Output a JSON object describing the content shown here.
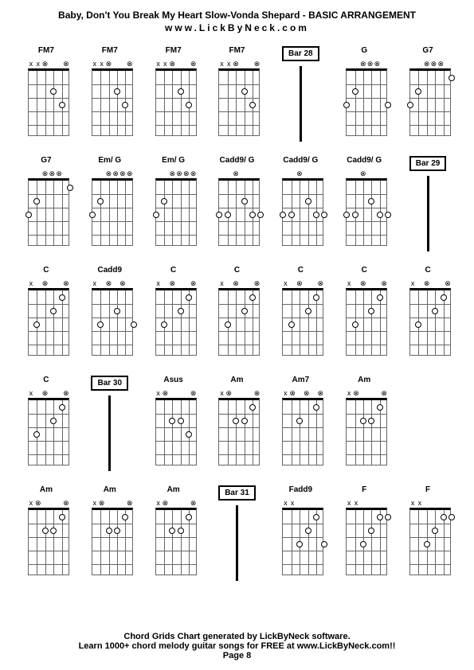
{
  "header": {
    "title": "Baby, Don't You Break My Heart Slow-Vonda Shepard - BASIC ARRANGEMENT",
    "subtitle": "www.LickByNeck.com"
  },
  "footer": {
    "line1": "Chord Grids Chart generated by LickByNeck software.",
    "line2": "Learn 1000+ chord melody guitar songs for FREE at www.LickByNeck.com!!",
    "line3": "Page 8"
  },
  "layout": {
    "cols": 7,
    "rows": 5,
    "frets": 5,
    "strings": 6,
    "fretboard_width": 52,
    "fretboard_height": 85,
    "colors": {
      "bg": "#ffffff",
      "text": "#000000",
      "grid_line": "#666666",
      "nut": "#000000"
    }
  },
  "cells": [
    {
      "type": "chord",
      "label": "FM7",
      "markers": [
        "x",
        "x",
        "⊗",
        "",
        "",
        "⊗"
      ],
      "dots": [
        {
          "s": 3,
          "f": 2,
          "fill": 0
        },
        {
          "s": 4,
          "f": 3,
          "fill": 0
        }
      ]
    },
    {
      "type": "chord",
      "label": "FM7",
      "markers": [
        "x",
        "x",
        "⊗",
        "",
        "",
        "⊗"
      ],
      "dots": [
        {
          "s": 3,
          "f": 2,
          "fill": 0
        },
        {
          "s": 4,
          "f": 3,
          "fill": 0
        }
      ]
    },
    {
      "type": "chord",
      "label": "FM7",
      "markers": [
        "x",
        "x",
        "⊗",
        "",
        "",
        "⊗"
      ],
      "dots": [
        {
          "s": 3,
          "f": 2,
          "fill": 0
        },
        {
          "s": 4,
          "f": 3,
          "fill": 0
        }
      ]
    },
    {
      "type": "chord",
      "label": "FM7",
      "markers": [
        "x",
        "x",
        "⊗",
        "",
        "",
        "⊗"
      ],
      "dots": [
        {
          "s": 3,
          "f": 2,
          "fill": 0
        },
        {
          "s": 4,
          "f": 3,
          "fill": 0
        }
      ]
    },
    {
      "type": "bar",
      "label": "Bar 28"
    },
    {
      "type": "chord",
      "label": "G",
      "markers": [
        "",
        "",
        "⊗",
        "⊗",
        "⊗",
        ""
      ],
      "dots": [
        {
          "s": 0,
          "f": 3,
          "fill": 0
        },
        {
          "s": 1,
          "f": 2,
          "fill": 0
        },
        {
          "s": 5,
          "f": 3,
          "fill": 0
        }
      ]
    },
    {
      "type": "chord",
      "label": "G7",
      "markers": [
        "",
        "",
        "⊗",
        "⊗",
        "⊗",
        ""
      ],
      "dots": [
        {
          "s": 0,
          "f": 3,
          "fill": 0
        },
        {
          "s": 1,
          "f": 2,
          "fill": 0
        },
        {
          "s": 5,
          "f": 1,
          "fill": 0
        }
      ]
    },
    {
      "type": "chord",
      "label": "G7",
      "markers": [
        "",
        "",
        "⊗",
        "⊗",
        "⊗",
        ""
      ],
      "dots": [
        {
          "s": 0,
          "f": 3,
          "fill": 0
        },
        {
          "s": 1,
          "f": 2,
          "fill": 0
        },
        {
          "s": 5,
          "f": 1,
          "fill": 0
        }
      ]
    },
    {
      "type": "chord",
      "label": "Em/ G",
      "markers": [
        "",
        "",
        "⊗",
        "⊗",
        "⊗",
        "⊗"
      ],
      "dots": [
        {
          "s": 0,
          "f": 3,
          "fill": 0
        },
        {
          "s": 1,
          "f": 2,
          "fill": 0
        }
      ]
    },
    {
      "type": "chord",
      "label": "Em/ G",
      "markers": [
        "",
        "",
        "⊗",
        "⊗",
        "⊗",
        "⊗"
      ],
      "dots": [
        {
          "s": 0,
          "f": 3,
          "fill": 0
        },
        {
          "s": 1,
          "f": 2,
          "fill": 0
        }
      ]
    },
    {
      "type": "chord",
      "label": "Cadd9/ G",
      "markers": [
        "",
        "",
        "⊗",
        "",
        "",
        ""
      ],
      "dots": [
        {
          "s": 0,
          "f": 3,
          "fill": 0
        },
        {
          "s": 1,
          "f": 3,
          "fill": 0
        },
        {
          "s": 3,
          "f": 2,
          "fill": 0
        },
        {
          "s": 4,
          "f": 3,
          "fill": 0
        },
        {
          "s": 5,
          "f": 3,
          "fill": 0
        }
      ]
    },
    {
      "type": "chord",
      "label": "Cadd9/ G",
      "markers": [
        "",
        "",
        "⊗",
        "",
        "",
        ""
      ],
      "dots": [
        {
          "s": 0,
          "f": 3,
          "fill": 0
        },
        {
          "s": 1,
          "f": 3,
          "fill": 0
        },
        {
          "s": 3,
          "f": 2,
          "fill": 0
        },
        {
          "s": 4,
          "f": 3,
          "fill": 0
        },
        {
          "s": 5,
          "f": 3,
          "fill": 0
        }
      ]
    },
    {
      "type": "chord",
      "label": "Cadd9/ G",
      "markers": [
        "",
        "",
        "⊗",
        "",
        "",
        ""
      ],
      "dots": [
        {
          "s": 0,
          "f": 3,
          "fill": 0
        },
        {
          "s": 1,
          "f": 3,
          "fill": 0
        },
        {
          "s": 3,
          "f": 2,
          "fill": 0
        },
        {
          "s": 4,
          "f": 3,
          "fill": 0
        },
        {
          "s": 5,
          "f": 3,
          "fill": 0
        }
      ]
    },
    {
      "type": "bar",
      "label": "Bar 29"
    },
    {
      "type": "chord",
      "label": "C",
      "markers": [
        "x",
        "",
        "⊗",
        "",
        "",
        "⊗"
      ],
      "dots": [
        {
          "s": 1,
          "f": 3,
          "fill": 0
        },
        {
          "s": 3,
          "f": 2,
          "fill": 0
        },
        {
          "s": 4,
          "f": 1,
          "fill": 0
        }
      ]
    },
    {
      "type": "chord",
      "label": "Cadd9",
      "markers": [
        "x",
        "",
        "⊗",
        "",
        "⊗",
        ""
      ],
      "dots": [
        {
          "s": 1,
          "f": 3,
          "fill": 0
        },
        {
          "s": 3,
          "f": 2,
          "fill": 0
        },
        {
          "s": 5,
          "f": 3,
          "fill": 0
        }
      ]
    },
    {
      "type": "chord",
      "label": "C",
      "markers": [
        "x",
        "",
        "⊗",
        "",
        "",
        "⊗"
      ],
      "dots": [
        {
          "s": 1,
          "f": 3,
          "fill": 0
        },
        {
          "s": 3,
          "f": 2,
          "fill": 0
        },
        {
          "s": 4,
          "f": 1,
          "fill": 0
        }
      ]
    },
    {
      "type": "chord",
      "label": "C",
      "markers": [
        "x",
        "",
        "⊗",
        "",
        "",
        "⊗"
      ],
      "dots": [
        {
          "s": 1,
          "f": 3,
          "fill": 0
        },
        {
          "s": 3,
          "f": 2,
          "fill": 0
        },
        {
          "s": 4,
          "f": 1,
          "fill": 0
        }
      ]
    },
    {
      "type": "chord",
      "label": "C",
      "markers": [
        "x",
        "",
        "⊗",
        "",
        "",
        "⊗"
      ],
      "dots": [
        {
          "s": 1,
          "f": 3,
          "fill": 0
        },
        {
          "s": 3,
          "f": 2,
          "fill": 0
        },
        {
          "s": 4,
          "f": 1,
          "fill": 0
        }
      ]
    },
    {
      "type": "chord",
      "label": "C",
      "markers": [
        "x",
        "",
        "⊗",
        "",
        "",
        "⊗"
      ],
      "dots": [
        {
          "s": 1,
          "f": 3,
          "fill": 0
        },
        {
          "s": 3,
          "f": 2,
          "fill": 0
        },
        {
          "s": 4,
          "f": 1,
          "fill": 0
        }
      ]
    },
    {
      "type": "chord",
      "label": "C",
      "markers": [
        "x",
        "",
        "⊗",
        "",
        "",
        "⊗"
      ],
      "dots": [
        {
          "s": 1,
          "f": 3,
          "fill": 0
        },
        {
          "s": 3,
          "f": 2,
          "fill": 0
        },
        {
          "s": 4,
          "f": 1,
          "fill": 0
        }
      ]
    },
    {
      "type": "chord",
      "label": "C",
      "markers": [
        "x",
        "",
        "⊗",
        "",
        "",
        "⊗"
      ],
      "dots": [
        {
          "s": 1,
          "f": 3,
          "fill": 0
        },
        {
          "s": 3,
          "f": 2,
          "fill": 0
        },
        {
          "s": 4,
          "f": 1,
          "fill": 0
        }
      ]
    },
    {
      "type": "bar",
      "label": "Bar 30"
    },
    {
      "type": "chord",
      "label": "Asus",
      "markers": [
        "x",
        "⊗",
        "",
        "",
        "",
        "⊗"
      ],
      "dots": [
        {
          "s": 2,
          "f": 2,
          "fill": 0
        },
        {
          "s": 3,
          "f": 2,
          "fill": 0
        },
        {
          "s": 4,
          "f": 3,
          "fill": 0
        }
      ]
    },
    {
      "type": "chord",
      "label": "Am",
      "markers": [
        "x",
        "⊗",
        "",
        "",
        "",
        "⊗"
      ],
      "dots": [
        {
          "s": 2,
          "f": 2,
          "fill": 0
        },
        {
          "s": 3,
          "f": 2,
          "fill": 0
        },
        {
          "s": 4,
          "f": 1,
          "fill": 0
        }
      ]
    },
    {
      "type": "chord",
      "label": "Am7",
      "markers": [
        "x",
        "⊗",
        "",
        "⊗",
        "",
        "⊗"
      ],
      "dots": [
        {
          "s": 2,
          "f": 2,
          "fill": 0
        },
        {
          "s": 4,
          "f": 1,
          "fill": 0
        }
      ]
    },
    {
      "type": "chord",
      "label": "Am",
      "markers": [
        "x",
        "⊗",
        "",
        "",
        "",
        "⊗"
      ],
      "dots": [
        {
          "s": 2,
          "f": 2,
          "fill": 0
        },
        {
          "s": 3,
          "f": 2,
          "fill": 0
        },
        {
          "s": 4,
          "f": 1,
          "fill": 0
        }
      ]
    },
    {
      "type": "blank"
    },
    {
      "type": "chord",
      "label": "Am",
      "markers": [
        "x",
        "⊗",
        "",
        "",
        "",
        "⊗"
      ],
      "dots": [
        {
          "s": 2,
          "f": 2,
          "fill": 0
        },
        {
          "s": 3,
          "f": 2,
          "fill": 0
        },
        {
          "s": 4,
          "f": 1,
          "fill": 0
        }
      ]
    },
    {
      "type": "chord",
      "label": "Am",
      "markers": [
        "x",
        "⊗",
        "",
        "",
        "",
        "⊗"
      ],
      "dots": [
        {
          "s": 2,
          "f": 2,
          "fill": 0
        },
        {
          "s": 3,
          "f": 2,
          "fill": 0
        },
        {
          "s": 4,
          "f": 1,
          "fill": 0
        }
      ]
    },
    {
      "type": "chord",
      "label": "Am",
      "markers": [
        "x",
        "⊗",
        "",
        "",
        "",
        "⊗"
      ],
      "dots": [
        {
          "s": 2,
          "f": 2,
          "fill": 0
        },
        {
          "s": 3,
          "f": 2,
          "fill": 0
        },
        {
          "s": 4,
          "f": 1,
          "fill": 0
        }
      ]
    },
    {
      "type": "bar",
      "label": "Bar 31"
    },
    {
      "type": "chord",
      "label": "Fadd9",
      "markers": [
        "x",
        "x",
        "",
        "",
        "",
        ""
      ],
      "dots": [
        {
          "s": 2,
          "f": 3,
          "fill": 0
        },
        {
          "s": 3,
          "f": 2,
          "fill": 0
        },
        {
          "s": 4,
          "f": 1,
          "fill": 0
        },
        {
          "s": 5,
          "f": 3,
          "fill": 0
        }
      ]
    },
    {
      "type": "chord",
      "label": "F",
      "markers": [
        "x",
        "x",
        "",
        "",
        "",
        ""
      ],
      "dots": [
        {
          "s": 2,
          "f": 3,
          "fill": 0
        },
        {
          "s": 3,
          "f": 2,
          "fill": 0
        },
        {
          "s": 4,
          "f": 1,
          "fill": 0
        },
        {
          "s": 5,
          "f": 1,
          "fill": 0
        }
      ]
    },
    {
      "type": "chord",
      "label": "F",
      "markers": [
        "x",
        "x",
        "",
        "",
        "",
        ""
      ],
      "dots": [
        {
          "s": 2,
          "f": 3,
          "fill": 0
        },
        {
          "s": 3,
          "f": 2,
          "fill": 0
        },
        {
          "s": 4,
          "f": 1,
          "fill": 0
        },
        {
          "s": 5,
          "f": 1,
          "fill": 0
        }
      ]
    }
  ]
}
